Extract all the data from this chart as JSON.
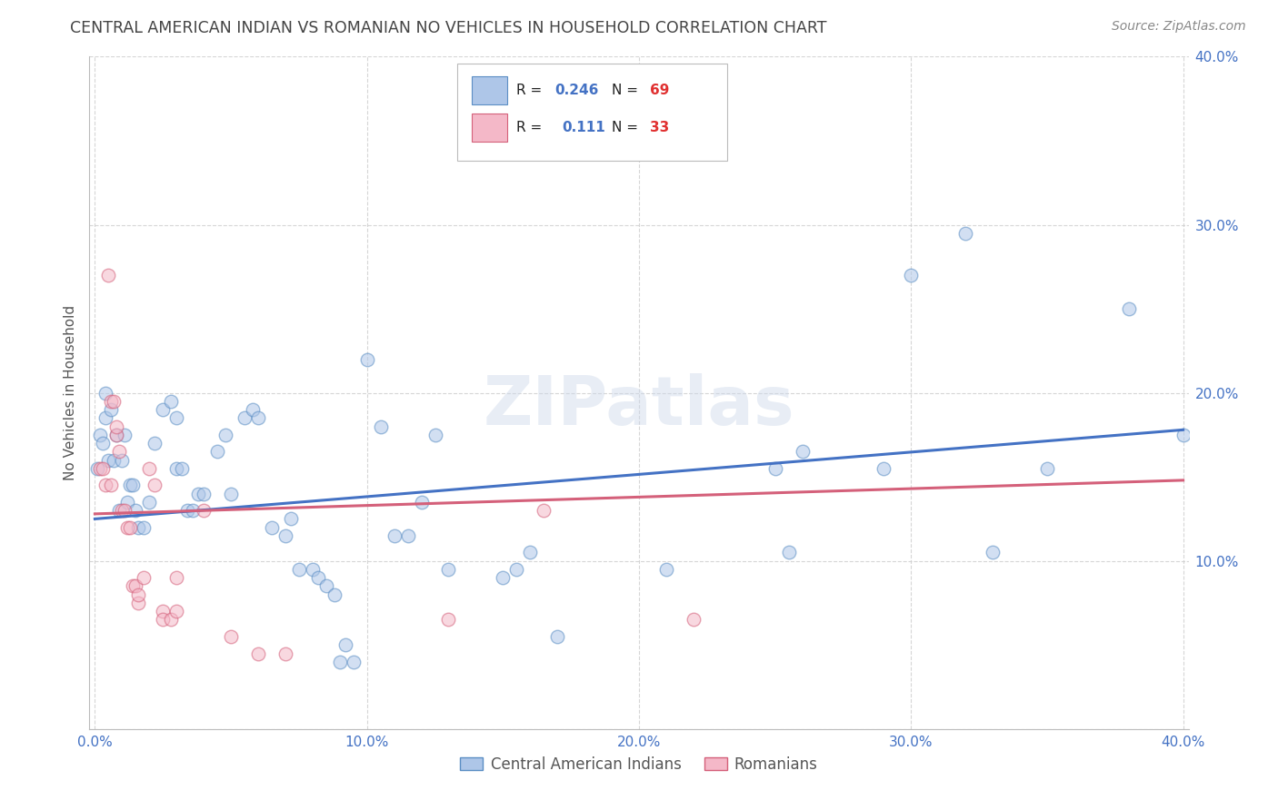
{
  "title": "CENTRAL AMERICAN INDIAN VS ROMANIAN NO VEHICLES IN HOUSEHOLD CORRELATION CHART",
  "source": "Source: ZipAtlas.com",
  "ylabel": "No Vehicles in Household",
  "watermark": "ZIPatlas",
  "legend_blue_R": "0.246",
  "legend_blue_N": "69",
  "legend_pink_R": "0.111",
  "legend_pink_N": "33",
  "blue_fill_color": "#aec6e8",
  "pink_fill_color": "#f4b8c8",
  "blue_edge_color": "#5b8ec4",
  "pink_edge_color": "#d4607a",
  "blue_line_color": "#4472c4",
  "pink_line_color": "#d4607a",
  "title_color": "#444444",
  "source_color": "#888888",
  "axis_tick_color": "#4472c4",
  "background_color": "#ffffff",
  "grid_color": "#cccccc",
  "blue_scatter": [
    [
      0.001,
      0.155
    ],
    [
      0.002,
      0.175
    ],
    [
      0.003,
      0.17
    ],
    [
      0.004,
      0.2
    ],
    [
      0.004,
      0.185
    ],
    [
      0.005,
      0.16
    ],
    [
      0.006,
      0.19
    ],
    [
      0.007,
      0.16
    ],
    [
      0.008,
      0.175
    ],
    [
      0.009,
      0.13
    ],
    [
      0.01,
      0.16
    ],
    [
      0.011,
      0.175
    ],
    [
      0.012,
      0.135
    ],
    [
      0.013,
      0.145
    ],
    [
      0.014,
      0.145
    ],
    [
      0.015,
      0.13
    ],
    [
      0.016,
      0.12
    ],
    [
      0.018,
      0.12
    ],
    [
      0.02,
      0.135
    ],
    [
      0.022,
      0.17
    ],
    [
      0.025,
      0.19
    ],
    [
      0.028,
      0.195
    ],
    [
      0.03,
      0.185
    ],
    [
      0.03,
      0.155
    ],
    [
      0.032,
      0.155
    ],
    [
      0.034,
      0.13
    ],
    [
      0.036,
      0.13
    ],
    [
      0.038,
      0.14
    ],
    [
      0.04,
      0.14
    ],
    [
      0.045,
      0.165
    ],
    [
      0.048,
      0.175
    ],
    [
      0.05,
      0.14
    ],
    [
      0.055,
      0.185
    ],
    [
      0.058,
      0.19
    ],
    [
      0.06,
      0.185
    ],
    [
      0.065,
      0.12
    ],
    [
      0.07,
      0.115
    ],
    [
      0.072,
      0.125
    ],
    [
      0.075,
      0.095
    ],
    [
      0.08,
      0.095
    ],
    [
      0.082,
      0.09
    ],
    [
      0.085,
      0.085
    ],
    [
      0.088,
      0.08
    ],
    [
      0.09,
      0.04
    ],
    [
      0.092,
      0.05
    ],
    [
      0.095,
      0.04
    ],
    [
      0.1,
      0.22
    ],
    [
      0.105,
      0.18
    ],
    [
      0.11,
      0.115
    ],
    [
      0.115,
      0.115
    ],
    [
      0.12,
      0.135
    ],
    [
      0.125,
      0.175
    ],
    [
      0.13,
      0.095
    ],
    [
      0.15,
      0.09
    ],
    [
      0.155,
      0.095
    ],
    [
      0.16,
      0.105
    ],
    [
      0.17,
      0.055
    ],
    [
      0.21,
      0.095
    ],
    [
      0.25,
      0.155
    ],
    [
      0.255,
      0.105
    ],
    [
      0.26,
      0.165
    ],
    [
      0.29,
      0.155
    ],
    [
      0.3,
      0.27
    ],
    [
      0.32,
      0.295
    ],
    [
      0.33,
      0.105
    ],
    [
      0.35,
      0.155
    ],
    [
      0.38,
      0.25
    ],
    [
      0.4,
      0.175
    ]
  ],
  "pink_scatter": [
    [
      0.002,
      0.155
    ],
    [
      0.003,
      0.155
    ],
    [
      0.004,
      0.145
    ],
    [
      0.005,
      0.27
    ],
    [
      0.006,
      0.145
    ],
    [
      0.006,
      0.195
    ],
    [
      0.007,
      0.195
    ],
    [
      0.008,
      0.175
    ],
    [
      0.008,
      0.18
    ],
    [
      0.009,
      0.165
    ],
    [
      0.01,
      0.13
    ],
    [
      0.011,
      0.13
    ],
    [
      0.012,
      0.12
    ],
    [
      0.013,
      0.12
    ],
    [
      0.014,
      0.085
    ],
    [
      0.015,
      0.085
    ],
    [
      0.016,
      0.075
    ],
    [
      0.016,
      0.08
    ],
    [
      0.018,
      0.09
    ],
    [
      0.02,
      0.155
    ],
    [
      0.022,
      0.145
    ],
    [
      0.025,
      0.07
    ],
    [
      0.025,
      0.065
    ],
    [
      0.028,
      0.065
    ],
    [
      0.03,
      0.07
    ],
    [
      0.03,
      0.09
    ],
    [
      0.04,
      0.13
    ],
    [
      0.05,
      0.055
    ],
    [
      0.06,
      0.045
    ],
    [
      0.07,
      0.045
    ],
    [
      0.13,
      0.065
    ],
    [
      0.165,
      0.13
    ],
    [
      0.22,
      0.065
    ]
  ],
  "blue_line_x": [
    0.0,
    0.4
  ],
  "blue_line_y": [
    0.125,
    0.178
  ],
  "pink_line_x": [
    0.0,
    0.4
  ],
  "pink_line_y": [
    0.128,
    0.148
  ],
  "xlim": [
    -0.002,
    0.402
  ],
  "ylim": [
    0.0,
    0.4
  ],
  "xticks": [
    0.0,
    0.1,
    0.2,
    0.3,
    0.4
  ],
  "xtick_labels": [
    "0.0%",
    "10.0%",
    "20.0%",
    "30.0%",
    "40.0%"
  ],
  "yticks": [
    0.0,
    0.1,
    0.2,
    0.3,
    0.4
  ],
  "ytick_labels_right": [
    "",
    "10.0%",
    "20.0%",
    "30.0%",
    "40.0%"
  ],
  "scatter_size": 110,
  "scatter_alpha": 0.55,
  "scatter_linewidth": 1.0,
  "line_linewidth": 2.2,
  "figsize": [
    14.06,
    8.92
  ],
  "dpi": 100
}
